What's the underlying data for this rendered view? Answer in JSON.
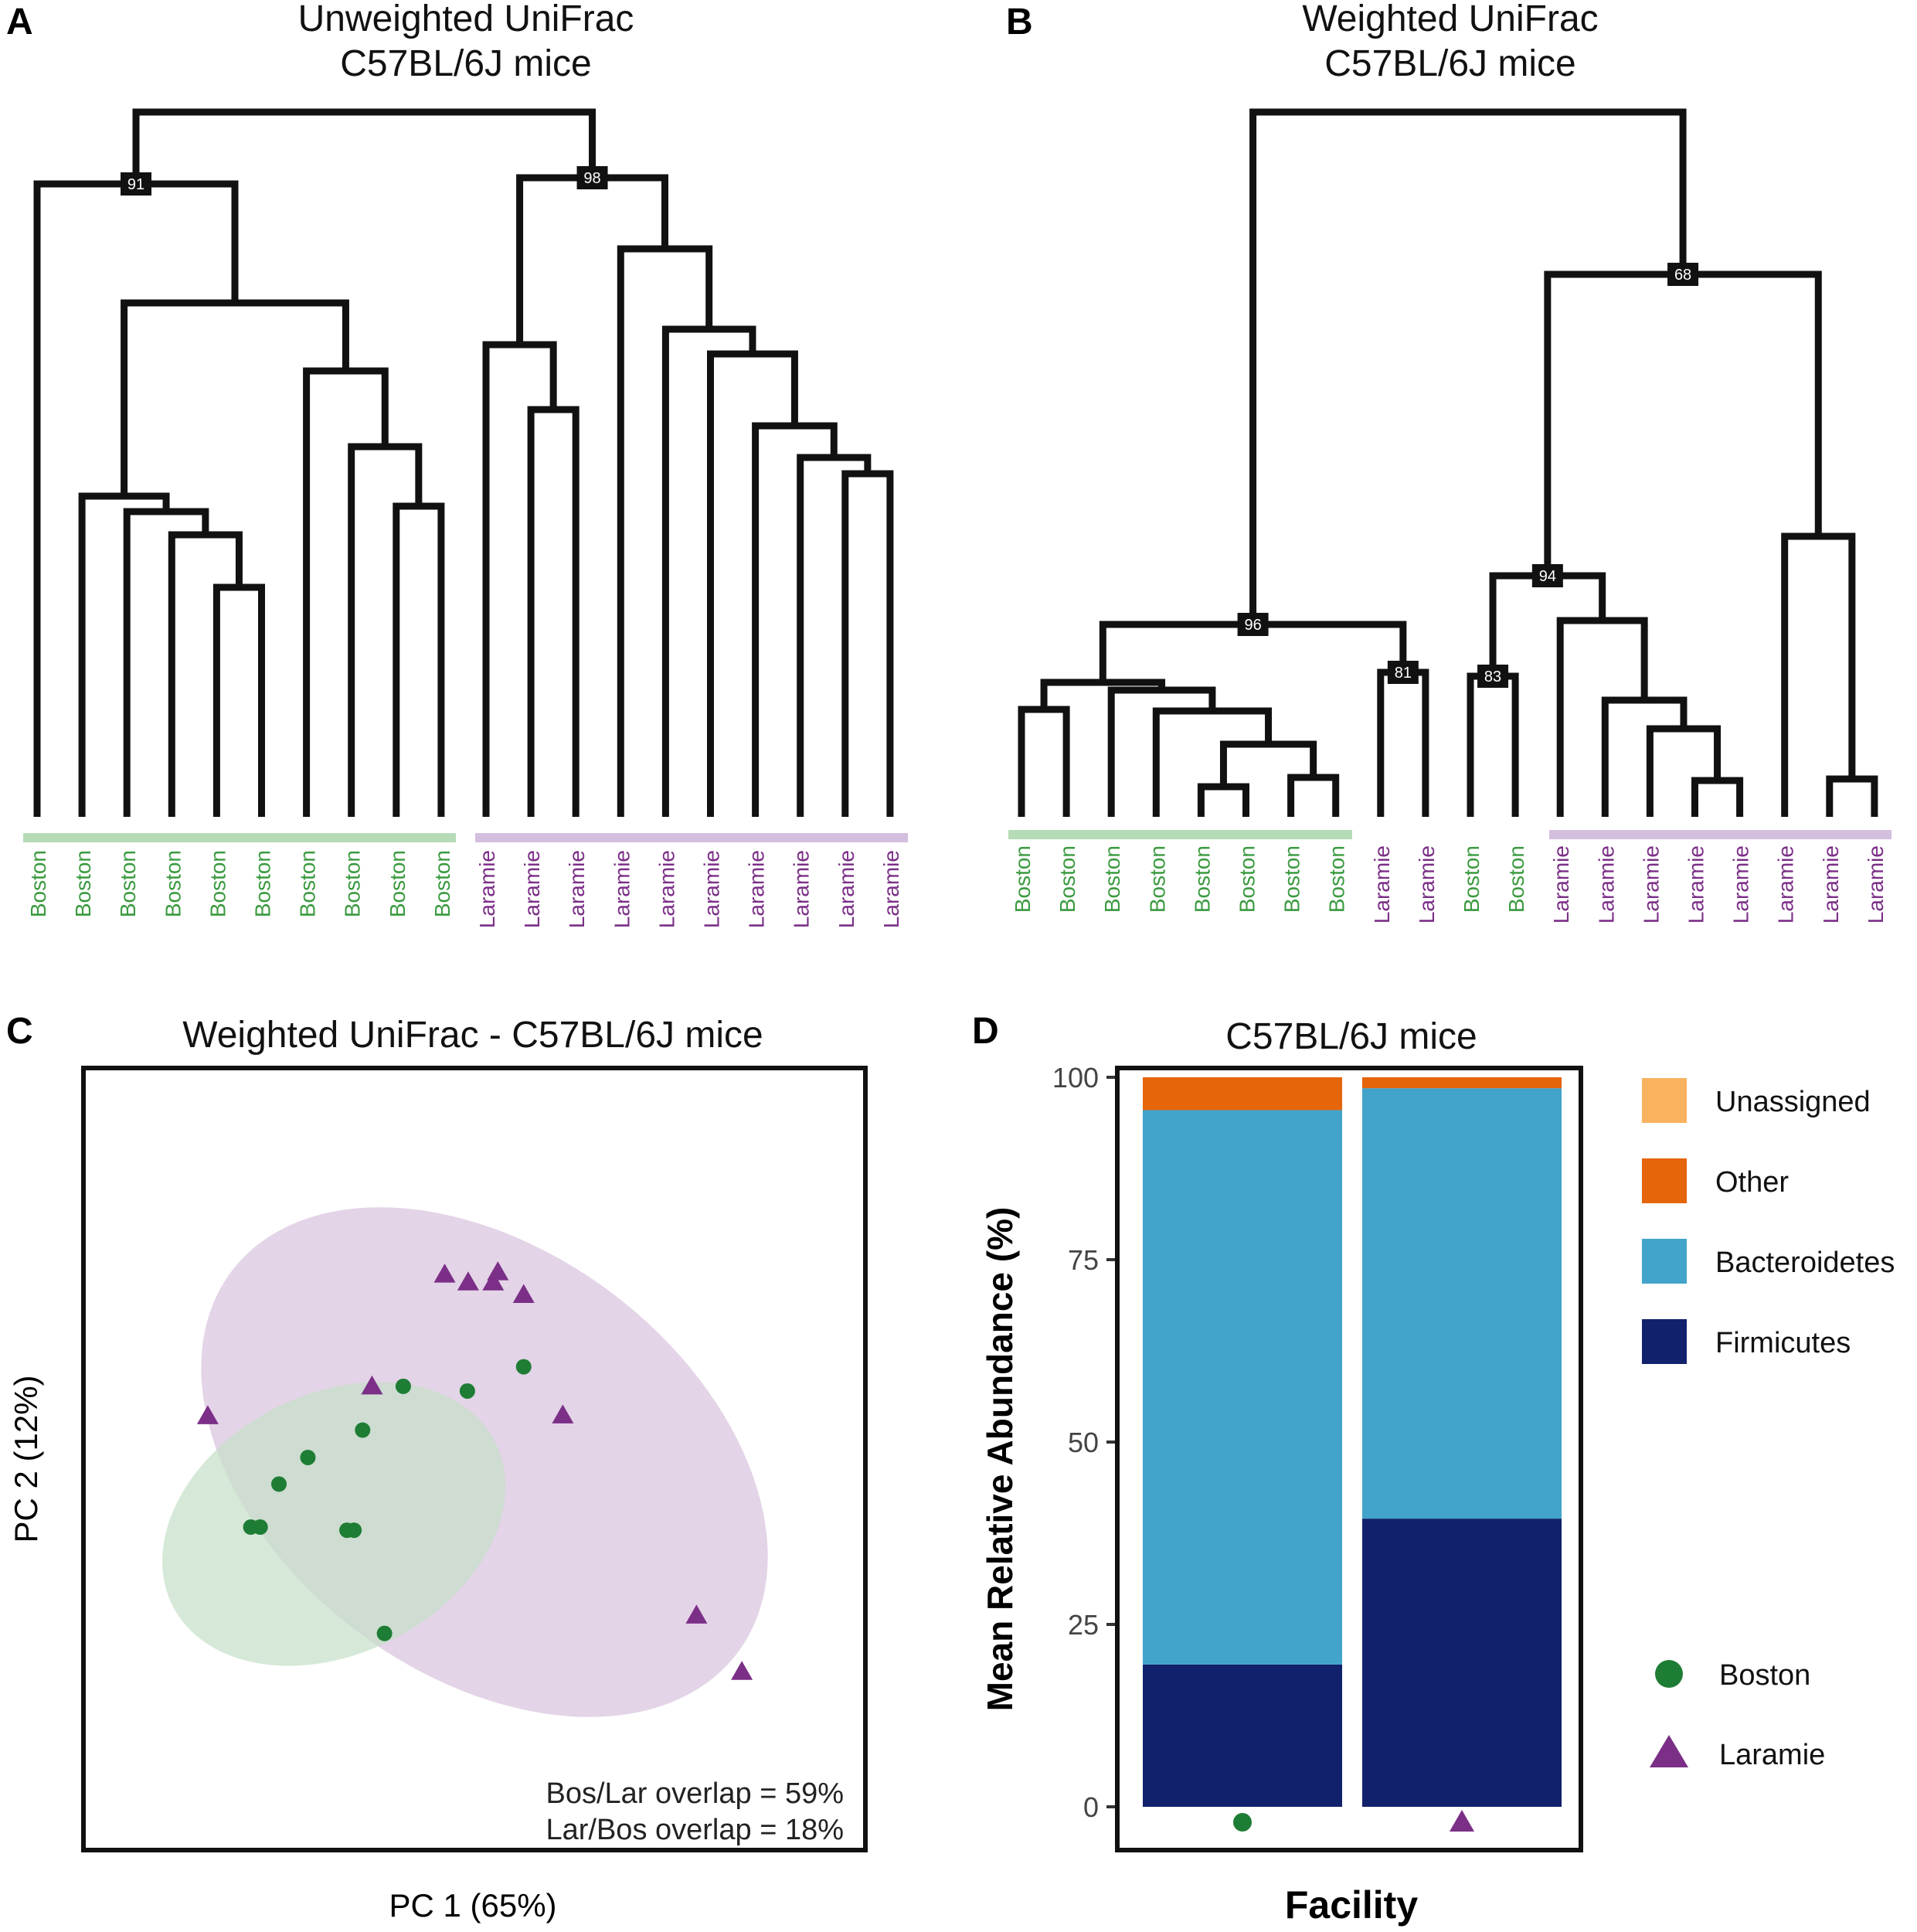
{
  "chart_data": [
    {
      "panel": "A",
      "type": "dendrogram",
      "title": [
        "Unweighted UniFrac",
        "C57BL/6J mice"
      ],
      "leaves": [
        "Boston",
        "Boston",
        "Boston",
        "Boston",
        "Boston",
        "Boston",
        "Boston",
        "Boston",
        "Boston",
        "Boston",
        "Laramie",
        "Laramie",
        "Laramie",
        "Laramie",
        "Laramie",
        "Laramie",
        "Laramie",
        "Laramie",
        "Laramie",
        "Laramie"
      ],
      "bootstrap": [
        "91",
        "98"
      ],
      "groups": [
        {
          "name": "Boston",
          "color": "#3a9a3f"
        },
        {
          "name": "Laramie",
          "color": "#7b2f87"
        }
      ]
    },
    {
      "panel": "B",
      "type": "dendrogram",
      "title": [
        "Weighted UniFrac",
        "C57BL/6J mice"
      ],
      "leaves": [
        "Boston",
        "Boston",
        "Boston",
        "Boston",
        "Boston",
        "Boston",
        "Boston",
        "Boston",
        "Laramie",
        "Laramie",
        "Boston",
        "Boston",
        "Laramie",
        "Laramie",
        "Laramie",
        "Laramie",
        "Laramie",
        "Laramie",
        "Laramie",
        "Laramie"
      ],
      "bootstrap": [
        "68",
        "96",
        "94",
        "81",
        "83"
      ]
    },
    {
      "panel": "C",
      "type": "scatter",
      "title": "Weighted UniFrac - C57BL/6J mice",
      "xlabel": "PC 1 (65%)",
      "ylabel": "PC 2 (12%)",
      "xlim": [
        0,
        100
      ],
      "ylim": [
        0,
        100
      ],
      "series": [
        {
          "name": "Boston",
          "marker": "circle",
          "color": "#1e7d34",
          "x": [
            21.4,
            22.6,
            25.0,
            28.7,
            33.7,
            34.6,
            35.7,
            40.9,
            49.1,
            56.3,
            38.5
          ],
          "y": [
            41.3,
            41.3,
            46.8,
            50.2,
            40.9,
            40.9,
            53.7,
            59.3,
            58.7,
            61.8,
            27.7
          ]
        },
        {
          "name": "Laramie",
          "marker": "triangle",
          "color": "#7b2f87",
          "x": [
            46.2,
            49.2,
            52.4,
            53.0,
            56.3,
            61.3,
            78.4,
            84.2,
            36.9,
            15.9
          ],
          "y": [
            73.6,
            72.6,
            72.6,
            73.9,
            71.0,
            55.6,
            30.0,
            22.8,
            59.3,
            55.5
          ]
        }
      ],
      "ellipses": [
        {
          "group": "Laramie",
          "color": "#d9c6df"
        },
        {
          "group": "Boston",
          "color": "#c4dfc7"
        }
      ],
      "annotations": [
        "Bos/Lar overlap = 59%",
        "Lar/Bos overlap = 18%"
      ]
    },
    {
      "panel": "D",
      "type": "bar",
      "stacked": true,
      "title": "C57BL/6J mice",
      "xlabel": "Facility",
      "ylabel": "Mean Relative Abundance (%)",
      "ylim": [
        0,
        100
      ],
      "yticks": [
        "0",
        "25",
        "50",
        "75",
        "100"
      ],
      "categories": [
        "Boston",
        "Laramie"
      ],
      "series": [
        {
          "name": "Firmicutes",
          "color": "#11216b",
          "values": [
            19.5,
            39.5
          ]
        },
        {
          "name": "Bacteroidetes",
          "color": "#42a3cb",
          "values": [
            76.0,
            59.0
          ]
        },
        {
          "name": "Other",
          "color": "#e4650a",
          "values": [
            4.5,
            1.5
          ]
        },
        {
          "name": "Unassigned",
          "color": "#f9b25e",
          "values": [
            0.0,
            0.0
          ]
        }
      ],
      "legend": [
        "Unassigned",
        "Other",
        "Bacteroidetes",
        "Firmicutes"
      ],
      "shape_legend": [
        {
          "name": "Boston",
          "marker": "circle",
          "color": "#1e7d34"
        },
        {
          "name": "Laramie",
          "marker": "triangle",
          "color": "#7b2f87"
        }
      ]
    }
  ]
}
